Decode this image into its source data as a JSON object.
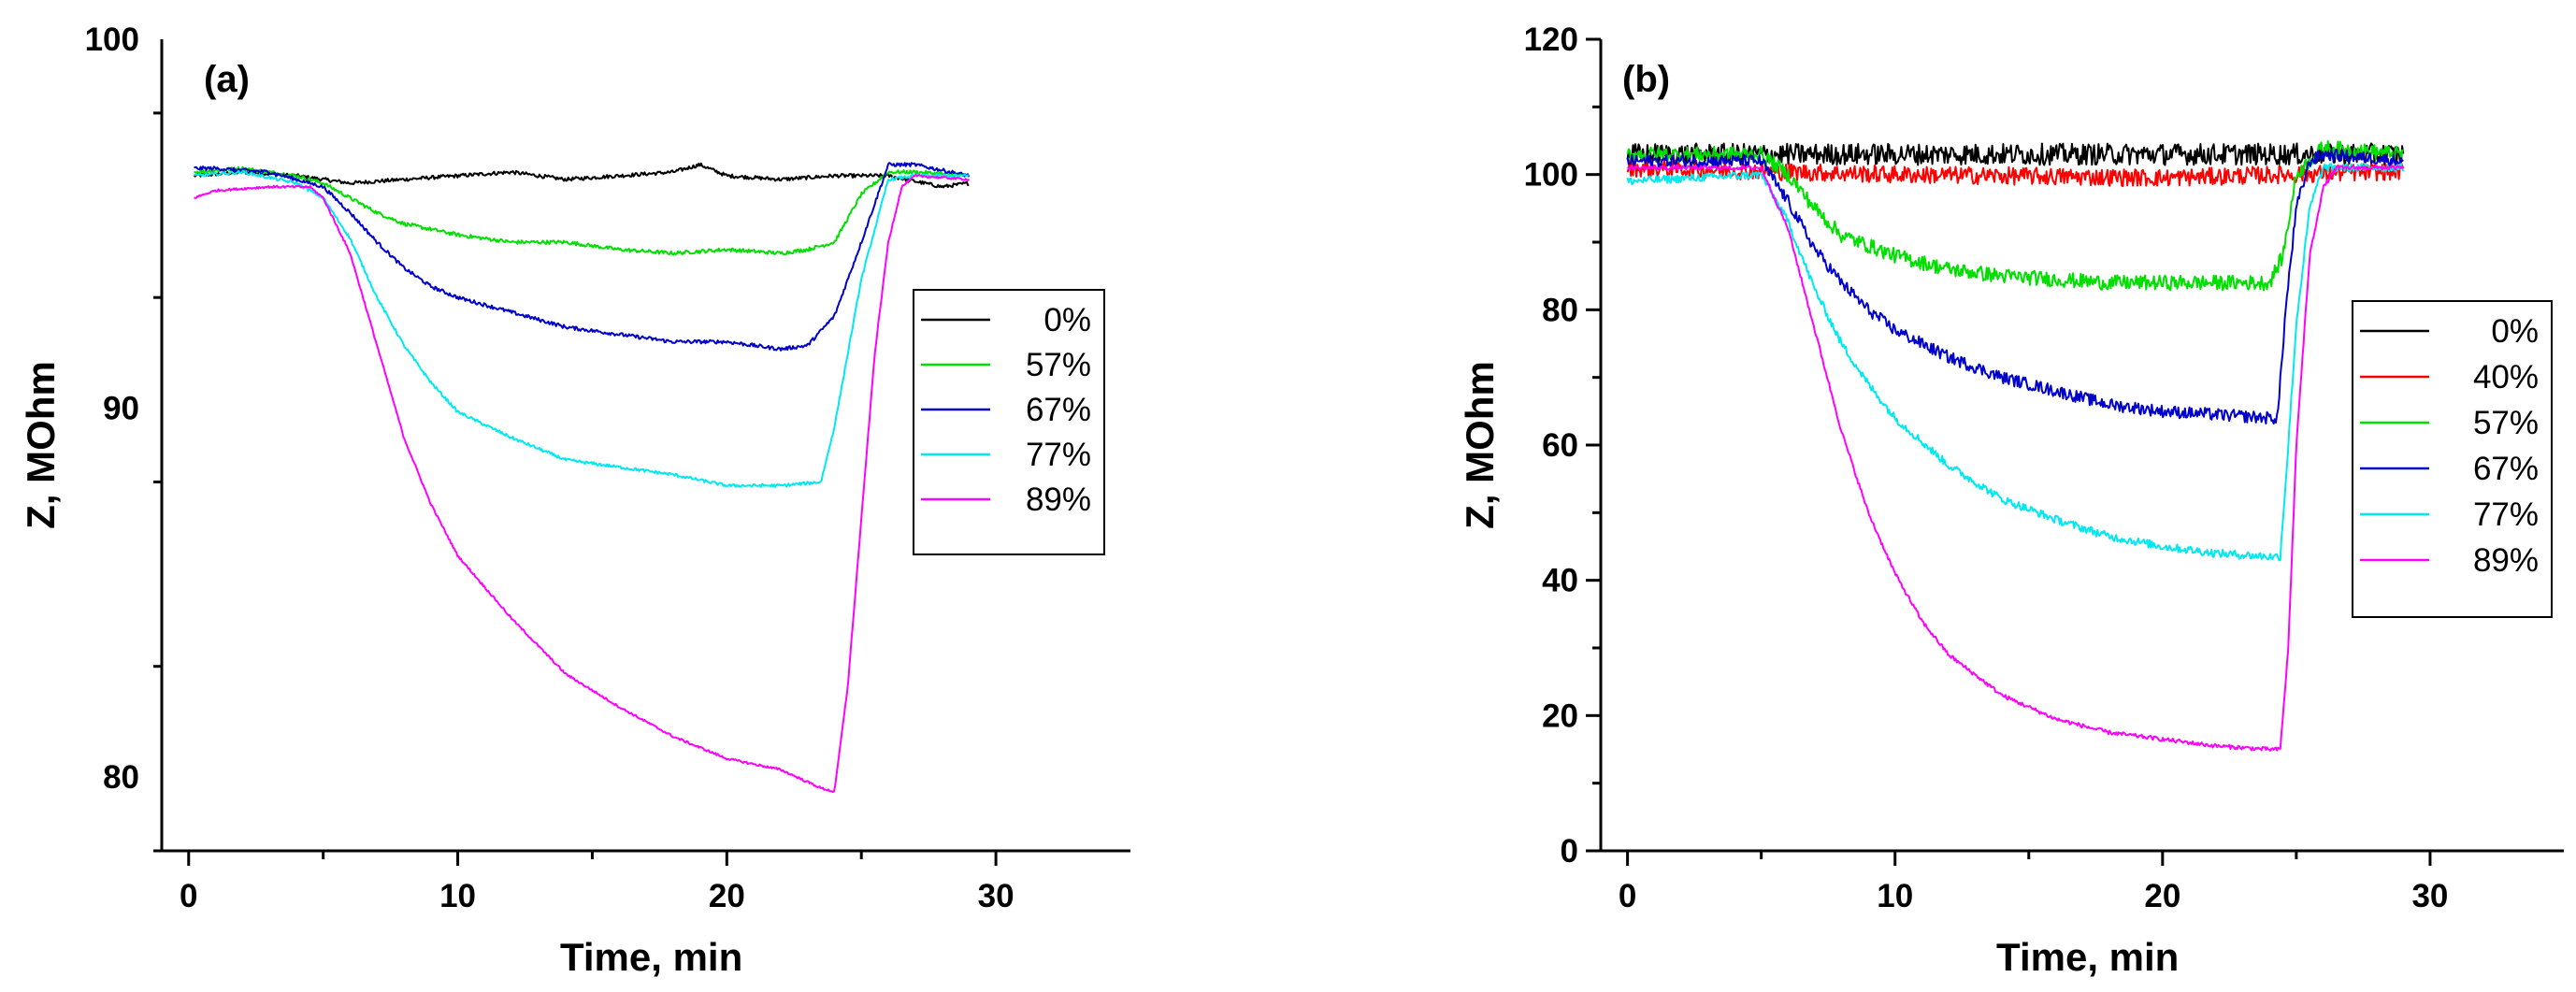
{
  "chart_data": [
    {
      "type": "line",
      "panel_label": "(a)",
      "xlabel": "Time, min",
      "ylabel": "Z, MOhm",
      "xlim": [
        -1,
        35
      ],
      "ylim": [
        78,
        100
      ],
      "xticks": [
        0,
        10,
        20,
        30
      ],
      "yticks": [
        80,
        90,
        100
      ],
      "legend_position": "right",
      "series": [
        {
          "name": "0%",
          "color": "#000000",
          "noise": 0.05,
          "points": [
            [
              0.2,
              96.3
            ],
            [
              2,
              96.4
            ],
            [
              4,
              96.3
            ],
            [
              5,
              96.2
            ],
            [
              6,
              96.1
            ],
            [
              8,
              96.2
            ],
            [
              10,
              96.3
            ],
            [
              12,
              96.4
            ],
            [
              14,
              96.2
            ],
            [
              16,
              96.3
            ],
            [
              18,
              96.4
            ],
            [
              19,
              96.6
            ],
            [
              20,
              96.3
            ],
            [
              22,
              96.2
            ],
            [
              24,
              96.3
            ],
            [
              26,
              96.3
            ],
            [
              28,
              96.0
            ],
            [
              29,
              96.1
            ]
          ]
        },
        {
          "name": "57%",
          "color": "#00e000",
          "noise": 0.05,
          "points": [
            [
              0.2,
              96.4
            ],
            [
              2,
              96.5
            ],
            [
              4,
              96.3
            ],
            [
              5,
              96.1
            ],
            [
              6,
              95.7
            ],
            [
              7,
              95.3
            ],
            [
              8,
              95.0
            ],
            [
              10,
              94.7
            ],
            [
              12,
              94.5
            ],
            [
              14,
              94.5
            ],
            [
              16,
              94.3
            ],
            [
              18,
              94.2
            ],
            [
              20,
              94.3
            ],
            [
              22,
              94.2
            ],
            [
              23,
              94.3
            ],
            [
              24,
              94.5
            ],
            [
              25,
              95.8
            ],
            [
              26,
              96.4
            ],
            [
              27,
              96.4
            ],
            [
              29,
              96.3
            ]
          ]
        },
        {
          "name": "67%",
          "color": "#0000cc",
          "noise": 0.05,
          "points": [
            [
              0.2,
              96.5
            ],
            [
              1,
              96.5
            ],
            [
              3,
              96.4
            ],
            [
              5,
              96.0
            ],
            [
              6,
              95.3
            ],
            [
              7,
              94.5
            ],
            [
              8,
              93.8
            ],
            [
              9,
              93.3
            ],
            [
              10,
              93.0
            ],
            [
              12,
              92.6
            ],
            [
              14,
              92.2
            ],
            [
              16,
              92.0
            ],
            [
              18,
              91.8
            ],
            [
              20,
              91.8
            ],
            [
              22,
              91.6
            ],
            [
              23,
              91.7
            ],
            [
              24,
              92.5
            ],
            [
              25,
              94.5
            ],
            [
              26,
              96.6
            ],
            [
              27,
              96.6
            ],
            [
              29,
              96.3
            ]
          ]
        },
        {
          "name": "77%",
          "color": "#00e8f0",
          "noise": 0.04,
          "points": [
            [
              0.2,
              96.3
            ],
            [
              2,
              96.4
            ],
            [
              4,
              96.1
            ],
            [
              5,
              95.7
            ],
            [
              6,
              94.6
            ],
            [
              7,
              93.0
            ],
            [
              8,
              91.7
            ],
            [
              9,
              90.7
            ],
            [
              10,
              89.9
            ],
            [
              12,
              89.2
            ],
            [
              14,
              88.6
            ],
            [
              16,
              88.4
            ],
            [
              18,
              88.2
            ],
            [
              20,
              87.9
            ],
            [
              22,
              87.9
            ],
            [
              23.5,
              88.0
            ],
            [
              24,
              89.5
            ],
            [
              25,
              93.5
            ],
            [
              26,
              96.2
            ],
            [
              27,
              96.3
            ],
            [
              29,
              96.3
            ]
          ]
        },
        {
          "name": "89%",
          "color": "#ff00ff",
          "noise": 0.03,
          "points": [
            [
              0.2,
              95.7
            ],
            [
              1,
              95.9
            ],
            [
              3,
              96.0
            ],
            [
              4.5,
              96.0
            ],
            [
              5,
              95.7
            ],
            [
              6,
              94.2
            ],
            [
              7,
              91.7
            ],
            [
              8,
              89.2
            ],
            [
              9,
              87.4
            ],
            [
              10,
              86.0
            ],
            [
              12,
              84.3
            ],
            [
              14,
              82.8
            ],
            [
              16,
              81.9
            ],
            [
              18,
              81.1
            ],
            [
              20,
              80.5
            ],
            [
              22,
              80.2
            ],
            [
              23.5,
              79.7
            ],
            [
              24,
              79.6
            ],
            [
              24.5,
              82.5
            ],
            [
              25,
              87.0
            ],
            [
              25.5,
              91.5
            ],
            [
              26,
              94.5
            ],
            [
              26.5,
              96.0
            ],
            [
              27,
              96.3
            ],
            [
              29,
              96.2
            ]
          ]
        }
      ]
    },
    {
      "type": "line",
      "panel_label": "(b)",
      "xlabel": "Time, min",
      "ylabel": "Z, MOhm",
      "xlim": [
        -1,
        35
      ],
      "ylim": [
        0,
        120
      ],
      "xticks": [
        0,
        10,
        20,
        30
      ],
      "yticks": [
        0,
        20,
        40,
        60,
        80,
        100,
        120
      ],
      "legend_position": "right",
      "series": [
        {
          "name": "0%",
          "color": "#000000",
          "noise": 1.6,
          "points": [
            [
              0,
              103
            ],
            [
              29,
              103
            ]
          ]
        },
        {
          "name": "40%",
          "color": "#ff0000",
          "noise": 1.3,
          "points": [
            [
              0,
              101
            ],
            [
              10,
              100
            ],
            [
              20,
              99.5
            ],
            [
              29,
              100.5
            ]
          ]
        },
        {
          "name": "57%",
          "color": "#00e000",
          "noise": 1.1,
          "points": [
            [
              0,
              103
            ],
            [
              5,
              103
            ],
            [
              6,
              100
            ],
            [
              7,
              95
            ],
            [
              8,
              91
            ],
            [
              10,
              88
            ],
            [
              12,
              86
            ],
            [
              14,
              85
            ],
            [
              18,
              84
            ],
            [
              22,
              84
            ],
            [
              24,
              84
            ],
            [
              24.5,
              88
            ],
            [
              25,
              100
            ],
            [
              26,
              104
            ],
            [
              29,
              103
            ]
          ]
        },
        {
          "name": "67%",
          "color": "#0000cc",
          "noise": 0.9,
          "points": [
            [
              0,
              102
            ],
            [
              5,
              102
            ],
            [
              6,
              96
            ],
            [
              7,
              89
            ],
            [
              8,
              84
            ],
            [
              9,
              80
            ],
            [
              10,
              77
            ],
            [
              12,
              73
            ],
            [
              14,
              70
            ],
            [
              16,
              68
            ],
            [
              18,
              66
            ],
            [
              20,
              65
            ],
            [
              22,
              64.5
            ],
            [
              24,
              64
            ],
            [
              24.3,
              64
            ],
            [
              24.6,
              80
            ],
            [
              25,
              95
            ],
            [
              25.5,
              102
            ],
            [
              26,
              103
            ],
            [
              29,
              102
            ]
          ]
        },
        {
          "name": "77%",
          "color": "#00e8f0",
          "noise": 0.6,
          "points": [
            [
              0,
              99
            ],
            [
              5,
              100
            ],
            [
              6,
              93
            ],
            [
              7,
              83
            ],
            [
              8,
              75
            ],
            [
              9,
              69
            ],
            [
              10,
              64
            ],
            [
              12,
              57
            ],
            [
              14,
              52
            ],
            [
              16,
              49
            ],
            [
              18,
              46.5
            ],
            [
              20,
              45
            ],
            [
              22,
              44
            ],
            [
              24,
              43.5
            ],
            [
              24.4,
              43.5
            ],
            [
              24.7,
              60
            ],
            [
              25,
              78
            ],
            [
              25.5,
              95
            ],
            [
              26,
              101
            ],
            [
              29,
              101
            ]
          ]
        },
        {
          "name": "89%",
          "color": "#ff00ff",
          "noise": 0.3,
          "points": [
            [
              0,
              101
            ],
            [
              5,
              101
            ],
            [
              6,
              92
            ],
            [
              7,
              77
            ],
            [
              8,
              62
            ],
            [
              9,
              50
            ],
            [
              10,
              41
            ],
            [
              11,
              34
            ],
            [
              12,
              29
            ],
            [
              14,
              23
            ],
            [
              16,
              19.5
            ],
            [
              18,
              17.5
            ],
            [
              20,
              16.5
            ],
            [
              22,
              15.5
            ],
            [
              24,
              15
            ],
            [
              24.4,
              15
            ],
            [
              24.7,
              30
            ],
            [
              25,
              60
            ],
            [
              25.5,
              88
            ],
            [
              26,
              98
            ],
            [
              26.5,
              101
            ],
            [
              29,
              101
            ]
          ]
        }
      ]
    }
  ]
}
